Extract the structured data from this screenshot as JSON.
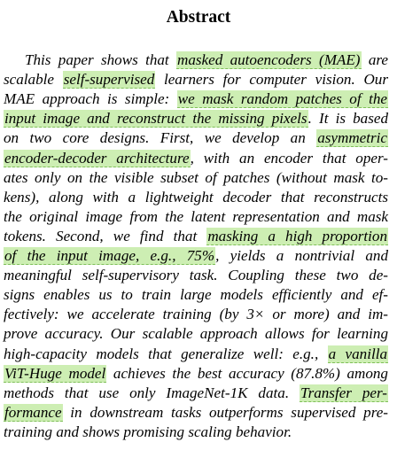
{
  "section_title": "Abstract",
  "abstract_lines": [
    {
      "runs": [
        {
          "t": "This paper shows that "
        },
        {
          "t": "masked autoencoders (MAE)",
          "hl": true
        },
        {
          "t": " are"
        }
      ]
    },
    {
      "runs": [
        {
          "t": "scalable "
        },
        {
          "t": "self-supervised",
          "hl": true
        },
        {
          "t": " learners for computer vision.  Our"
        }
      ]
    },
    {
      "runs": [
        {
          "t": "MAE approach is simple: "
        },
        {
          "t": " we mask random patches of the",
          "hl": true
        }
      ]
    },
    {
      "runs": [
        {
          "t": "input image and reconstruct the missing pixels",
          "hl": true
        },
        {
          "t": ". It is based"
        }
      ]
    },
    {
      "runs": [
        {
          "t": "on two core designs.  First, we develop an "
        },
        {
          "t": "asymmetric",
          "hl": true
        }
      ]
    },
    {
      "runs": [
        {
          "t": "encoder-decoder architecture",
          "hl": true
        },
        {
          "t": ", with an encoder that oper-"
        }
      ]
    },
    {
      "runs": [
        {
          "t": "ates only on the visible subset of patches (without mask to-"
        }
      ]
    },
    {
      "runs": [
        {
          "t": "kens), along with a lightweight decoder that reconstructs"
        }
      ]
    },
    {
      "runs": [
        {
          "t": "the original image from the latent representation and mask"
        }
      ]
    },
    {
      "runs": [
        {
          "t": "tokens.  Second, we find that "
        },
        {
          "t": "masking a high proportion",
          "hl": true
        }
      ]
    },
    {
      "runs": [
        {
          "t": "of the input image, e.g., 75%",
          "hl": true
        },
        {
          "t": ", yields a nontrivial and"
        }
      ]
    },
    {
      "runs": [
        {
          "t": "meaningful self-supervisory task.  Coupling these two de-"
        }
      ]
    },
    {
      "runs": [
        {
          "t": "signs enables us to train large models efficiently and ef-"
        }
      ]
    },
    {
      "runs": [
        {
          "t": "fectively: we accelerate training (by 3× or more) and im-"
        }
      ]
    },
    {
      "runs": [
        {
          "t": "prove accuracy. Our scalable approach allows for learning"
        }
      ]
    },
    {
      "runs": [
        {
          "t": "high-capacity models that generalize well: e.g., "
        },
        {
          "t": "a vanilla",
          "hl": true
        }
      ]
    },
    {
      "runs": [
        {
          "t": "ViT-Huge model",
          "hl": true
        },
        {
          "t": " achieves the best accuracy (87.8%) among"
        }
      ]
    },
    {
      "runs": [
        {
          "t": "methods that use only ImageNet-1K data.  "
        },
        {
          "t": "Transfer per-",
          "hl": true
        }
      ]
    },
    {
      "runs": [
        {
          "t": "formance",
          "hl": true
        },
        {
          "t": " in downstream tasks outperforms supervised pre-"
        }
      ]
    },
    {
      "runs": [
        {
          "t": "training and shows promising scaling behavior."
        }
      ]
    }
  ],
  "colors": {
    "highlight": "#cdeeb3",
    "highlight_underline": "#7fbf5a",
    "text": "#000000",
    "background": "#ffffff"
  }
}
